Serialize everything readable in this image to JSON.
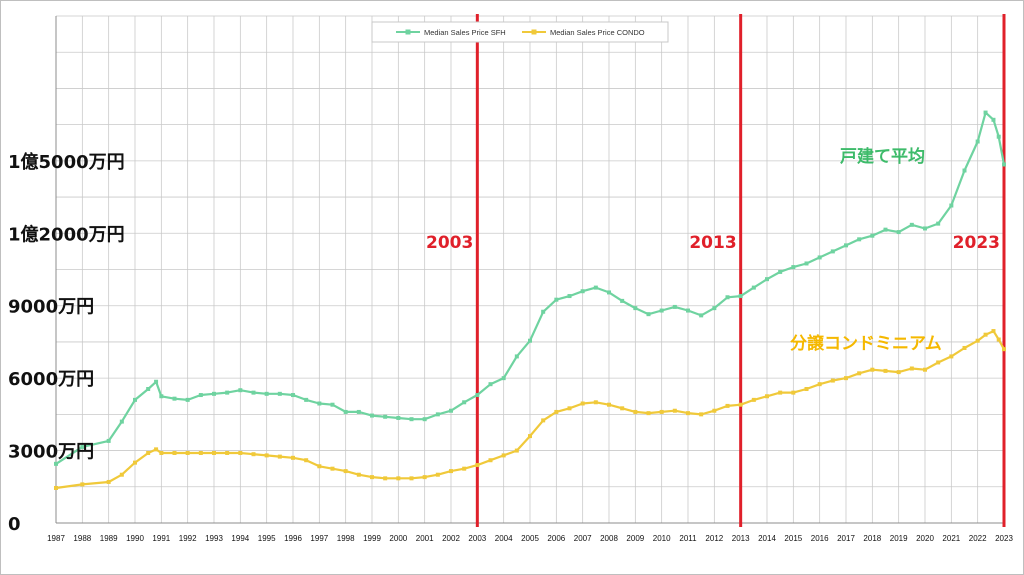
{
  "chart_data": {
    "type": "line",
    "legend": {
      "position": "top-center",
      "entries": [
        "Median Sales Price SFH",
        "Median Sales Price CONDO"
      ]
    },
    "y_tick_labels": [
      "0",
      "3000万円",
      "6000万円",
      "9000万円",
      "1億2000万円",
      "1億5000万円"
    ],
    "ylim": [
      0,
      210000000
    ],
    "xlim": [
      1987,
      2023
    ],
    "x_tick_labels": [
      "1987",
      "1988",
      "1989",
      "1990",
      "1991",
      "1992",
      "1993",
      "1994",
      "1995",
      "1996",
      "1997",
      "1998",
      "1999",
      "2000",
      "2001",
      "2002",
      "2003",
      "2004",
      "2005",
      "2006",
      "2007",
      "2008",
      "2009",
      "2010",
      "2011",
      "2012",
      "2013",
      "2014",
      "2015",
      "2016",
      "2017",
      "2018",
      "2019",
      "2020",
      "2021",
      "2022",
      "2023"
    ],
    "grid": true,
    "vertical_markers": [
      {
        "x": 2003,
        "label": "2003",
        "color": "#e0202a"
      },
      {
        "x": 2013,
        "label": "2013",
        "color": "#e0202a"
      },
      {
        "x": 2023,
        "label": "2023",
        "color": "#e0202a"
      }
    ],
    "annotations": {
      "sfh": "戸建て平均",
      "condo": "分譲コンドミニアム"
    },
    "series": [
      {
        "name": "Median Sales Price SFH",
        "color": "#6fd3a0",
        "x": [
          1987,
          1988,
          1989,
          1989.5,
          1990,
          1990.5,
          1990.8,
          1991,
          1991.5,
          1992,
          1992.5,
          1993,
          1993.5,
          1994,
          1994.5,
          1995,
          1995.5,
          1996,
          1996.5,
          1997,
          1997.5,
          1998,
          1998.5,
          1999,
          1999.5,
          2000,
          2000.5,
          2001,
          2001.5,
          2002,
          2002.5,
          2003,
          2003.5,
          2004,
          2004.5,
          2005,
          2005.5,
          2006,
          2006.5,
          2007,
          2007.5,
          2008,
          2008.5,
          2009,
          2009.5,
          2010,
          2010.5,
          2011,
          2011.5,
          2012,
          2012.5,
          2013,
          2013.5,
          2014,
          2014.5,
          2015,
          2015.5,
          2016,
          2016.5,
          2017,
          2017.5,
          2018,
          2018.5,
          2019,
          2019.5,
          2020,
          2020.5,
          2021,
          2021.5,
          2022,
          2022.3,
          2022.6,
          2022.8,
          2023
        ],
        "values": [
          24500000,
          31500000,
          34000000,
          42000000,
          51000000,
          55500000,
          58500000,
          52500000,
          51500000,
          51000000,
          53000000,
          53500000,
          54000000,
          55000000,
          54000000,
          53500000,
          53500000,
          53000000,
          51000000,
          49500000,
          49000000,
          46000000,
          46000000,
          44500000,
          44000000,
          43500000,
          43000000,
          43000000,
          45000000,
          46500000,
          50000000,
          53000000,
          57500000,
          60000000,
          69000000,
          75500000,
          87500000,
          92500000,
          94000000,
          96000000,
          97500000,
          95500000,
          92000000,
          89000000,
          86500000,
          88000000,
          89500000,
          88000000,
          86000000,
          89000000,
          93500000,
          94000000,
          97500000,
          101000000,
          104000000,
          106000000,
          107500000,
          110000000,
          112500000,
          115000000,
          117500000,
          119000000,
          121500000,
          120500000,
          123500000,
          122000000,
          124000000,
          131500000,
          146000000,
          158000000,
          170000000,
          167000000,
          160000000,
          148500000
        ]
      },
      {
        "name": "Median Sales Price CONDO",
        "color": "#f0c93a",
        "x": [
          1987,
          1988,
          1989,
          1989.5,
          1990,
          1990.5,
          1990.8,
          1991,
          1991.5,
          1992,
          1992.5,
          1993,
          1993.5,
          1994,
          1994.5,
          1995,
          1995.5,
          1996,
          1996.5,
          1997,
          1997.5,
          1998,
          1998.5,
          1999,
          1999.5,
          2000,
          2000.5,
          2001,
          2001.5,
          2002,
          2002.5,
          2003,
          2003.5,
          2004,
          2004.5,
          2005,
          2005.5,
          2006,
          2006.5,
          2007,
          2007.5,
          2008,
          2008.5,
          2009,
          2009.5,
          2010,
          2010.5,
          2011,
          2011.5,
          2012,
          2012.5,
          2013,
          2013.5,
          2014,
          2014.5,
          2015,
          2015.5,
          2016,
          2016.5,
          2017,
          2017.5,
          2018,
          2018.5,
          2019,
          2019.5,
          2020,
          2020.5,
          2021,
          2021.5,
          2022,
          2022.3,
          2022.6,
          2022.8,
          2023
        ],
        "values": [
          14500000,
          16000000,
          17000000,
          20000000,
          25000000,
          29000000,
          30500000,
          29000000,
          29000000,
          29000000,
          29000000,
          29000000,
          29000000,
          29000000,
          28500000,
          28000000,
          27500000,
          27000000,
          26000000,
          23500000,
          22500000,
          21500000,
          20000000,
          19000000,
          18500000,
          18500000,
          18500000,
          19000000,
          20000000,
          21500000,
          22500000,
          24000000,
          26000000,
          28000000,
          30000000,
          36000000,
          42500000,
          46000000,
          47500000,
          49500000,
          50000000,
          49000000,
          47500000,
          46000000,
          45500000,
          46000000,
          46500000,
          45500000,
          45000000,
          46500000,
          48500000,
          49000000,
          51000000,
          52500000,
          54000000,
          54000000,
          55500000,
          57500000,
          59000000,
          60000000,
          62000000,
          63500000,
          63000000,
          62500000,
          64000000,
          63500000,
          66500000,
          69000000,
          72500000,
          75500000,
          78000000,
          79500000,
          76000000,
          72000000
        ]
      }
    ]
  }
}
